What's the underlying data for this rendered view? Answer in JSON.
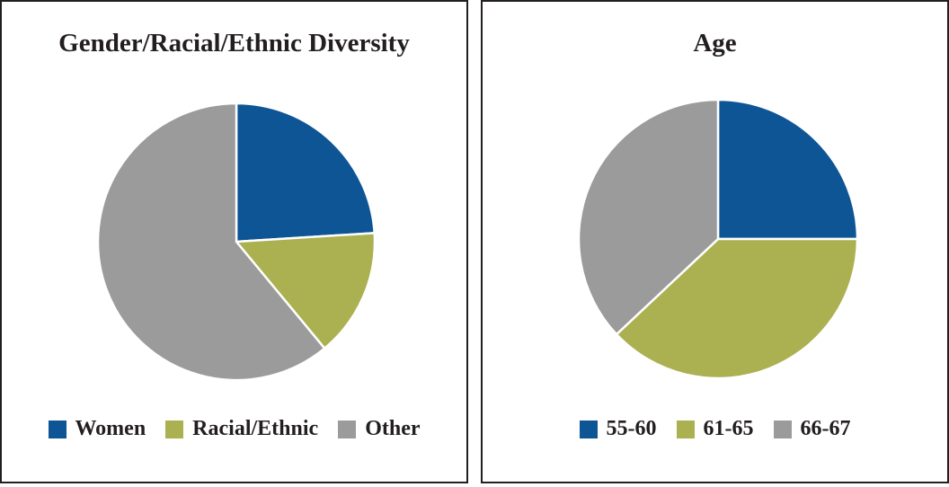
{
  "chart_data": [
    {
      "type": "pie",
      "title": "Gender/Racial/Ethnic Diversity",
      "categories": [
        "Women",
        "Racial/Ethnic",
        "Other"
      ],
      "values": [
        24,
        15,
        61
      ],
      "colors": [
        "#0e5596",
        "#abb050",
        "#9b9b9b"
      ],
      "legend": "bottom"
    },
    {
      "type": "pie",
      "title": "Age",
      "categories": [
        "55-60",
        "61-65",
        "66-67"
      ],
      "values": [
        25,
        38,
        37
      ],
      "colors": [
        "#0e5596",
        "#abb050",
        "#9b9b9b"
      ],
      "legend": "bottom"
    }
  ]
}
